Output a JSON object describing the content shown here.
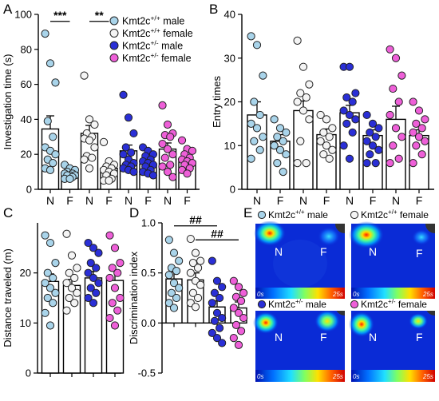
{
  "panels": {
    "A": "A",
    "B": "B",
    "C": "C",
    "D": "D",
    "E": "E"
  },
  "groups": [
    {
      "name": "Kmt2c",
      "sup": "+/+",
      "sex": "male",
      "color": "#a9d4ea"
    },
    {
      "name": "Kmt2c",
      "sup": "+/+",
      "sex": "female",
      "color": "#f4f4f4"
    },
    {
      "name": "Kmt2c",
      "sup": "+/-",
      "sex": "male",
      "color": "#2a2fd6"
    },
    {
      "name": "Kmt2c",
      "sup": "+/-",
      "sex": "female",
      "color": "#ee5fd8"
    }
  ],
  "chart_data": [
    {
      "panel": "A",
      "type": "bar",
      "ylabel": "Investigation time (s)",
      "ylim": [
        0,
        100
      ],
      "yticks": [
        0,
        20,
        40,
        60,
        80,
        100
      ],
      "categories": [
        "N",
        "F",
        "N",
        "F",
        "N",
        "F",
        "N",
        "F"
      ],
      "bar_groups": [
        0,
        0,
        1,
        1,
        2,
        2,
        3,
        3
      ],
      "values": [
        34.5,
        9.5,
        32,
        12,
        22,
        14.5,
        23,
        16
      ],
      "errors": [
        7.5,
        1.2,
        4.5,
        1.8,
        3.3,
        1.2,
        3.5,
        1.3
      ],
      "points": [
        [
          89,
          72,
          61,
          39,
          30,
          24,
          22,
          20,
          17,
          15,
          12,
          11
        ],
        [
          14,
          12,
          11,
          10,
          9,
          9,
          8,
          8,
          8,
          7,
          6,
          6
        ],
        [
          65,
          40,
          37,
          32,
          30,
          29,
          28,
          24,
          19,
          18,
          17,
          12
        ],
        [
          27,
          16,
          14,
          13,
          12,
          11,
          10,
          9,
          8,
          6,
          5,
          5
        ],
        [
          54,
          41,
          32,
          24,
          21,
          20,
          17,
          15,
          14,
          13,
          12,
          11,
          10
        ],
        [
          24,
          22,
          20,
          19,
          17,
          16,
          15,
          14,
          13,
          11,
          10,
          9,
          8
        ],
        [
          48,
          37,
          32,
          31,
          30,
          26,
          23,
          20,
          18,
          14,
          13,
          10,
          7
        ],
        [
          28,
          23,
          22,
          20,
          18,
          17,
          16,
          15,
          14,
          12,
          11,
          9
        ]
      ],
      "significance": [
        {
          "between": [
            0,
            1
          ],
          "label": "***",
          "y": 96
        },
        {
          "between": [
            2,
            3
          ],
          "label": "**",
          "y": 96
        }
      ]
    },
    {
      "panel": "B",
      "type": "bar",
      "ylabel": "Entry times",
      "ylim": [
        0,
        40
      ],
      "yticks": [
        0,
        10,
        20,
        30,
        40
      ],
      "categories": [
        "N",
        "F",
        "N",
        "F",
        "N",
        "F",
        "N",
        "F"
      ],
      "bar_groups": [
        0,
        0,
        1,
        1,
        2,
        2,
        3,
        3
      ],
      "values": [
        17,
        11,
        18,
        12.5,
        17.5,
        12.3,
        16,
        12.3
      ],
      "errors": [
        3,
        1.5,
        2.2,
        1.3,
        1.7,
        1.3,
        3,
        1.3
      ],
      "points": [
        [
          35,
          33,
          26,
          20,
          17,
          15,
          14,
          12,
          11,
          9,
          7
        ],
        [
          16,
          14,
          13,
          12,
          11,
          10,
          9,
          8,
          6,
          4
        ],
        [
          34,
          28,
          24,
          22,
          21,
          20,
          18,
          16,
          11,
          6,
          6
        ],
        [
          17,
          16,
          14,
          13,
          12,
          11,
          10,
          9,
          8,
          7
        ],
        [
          28,
          28,
          22,
          21,
          20,
          18,
          17,
          16,
          15,
          13,
          10,
          7
        ],
        [
          17,
          15,
          14,
          13,
          12,
          11,
          10,
          9,
          8,
          6,
          6
        ],
        [
          32,
          30,
          26,
          23,
          20,
          17,
          14,
          12,
          10,
          7,
          6
        ],
        [
          20,
          18,
          16,
          15,
          14,
          13,
          12,
          11,
          10,
          8,
          6
        ]
      ],
      "significance": []
    },
    {
      "panel": "C",
      "type": "bar",
      "ylabel": "Distance traveled (m)",
      "ylim": [
        0,
        30
      ],
      "yticks": [
        0,
        10,
        20
      ],
      "categories": [
        "",
        "",
        "",
        ""
      ],
      "bar_groups": [
        0,
        1,
        2,
        3
      ],
      "values": [
        18.3,
        17.5,
        19,
        18.5
      ],
      "errors": [
        1.5,
        1.2,
        1.3,
        2
      ],
      "points": [
        [
          27.5,
          26,
          22,
          20,
          19,
          18,
          17,
          16,
          15,
          14,
          12,
          9.5
        ],
        [
          27.8,
          23.5,
          21,
          20,
          19,
          18,
          17,
          16,
          15,
          14,
          12.5
        ],
        [
          26,
          25,
          24,
          22,
          21,
          20,
          19,
          18,
          17,
          16,
          15,
          14
        ],
        [
          27.5,
          25,
          22,
          21,
          20,
          19,
          17,
          15,
          14,
          12.5,
          11,
          9.5
        ]
      ],
      "significance": []
    },
    {
      "panel": "D",
      "type": "bar",
      "ylabel": "Discrimination index",
      "ylim": [
        -0.5,
        1.0
      ],
      "yticks": [
        -0.5,
        0.0,
        0.5,
        1.0
      ],
      "yticklabels": [
        "-0.5",
        "0.0",
        "0.5",
        "1.0"
      ],
      "categories": [
        "",
        "",
        "",
        ""
      ],
      "bar_groups": [
        0,
        1,
        2,
        3
      ],
      "values": [
        0.44,
        0.43,
        0.16,
        0.15
      ],
      "errors": [
        0.07,
        0.07,
        0.06,
        0.06
      ],
      "points": [
        [
          0.83,
          0.7,
          0.62,
          0.55,
          0.52,
          0.48,
          0.4,
          0.35,
          0.3,
          0.25,
          0.2,
          0.15
        ],
        [
          0.84,
          0.7,
          0.62,
          0.6,
          0.55,
          0.5,
          0.42,
          0.38,
          0.3,
          0.25,
          0.2,
          0.16
        ],
        [
          0.62,
          0.42,
          0.36,
          0.3,
          0.25,
          0.2,
          0.1,
          0.05,
          0.02,
          -0.05,
          -0.1,
          -0.15,
          -0.2
        ],
        [
          0.42,
          0.36,
          0.3,
          0.26,
          0.22,
          0.15,
          0.1,
          0.05,
          -0.02,
          -0.08,
          -0.15,
          -0.22
        ]
      ],
      "significance": [
        {
          "between": [
            0,
            2
          ],
          "label": "##",
          "y": 0.97
        },
        {
          "between": [
            1,
            3
          ],
          "label": "##",
          "y": 0.83
        }
      ]
    }
  ],
  "heatmaps": {
    "scale_start": "0s",
    "scale_end": "25s",
    "label_n": "N",
    "label_f": "F"
  }
}
